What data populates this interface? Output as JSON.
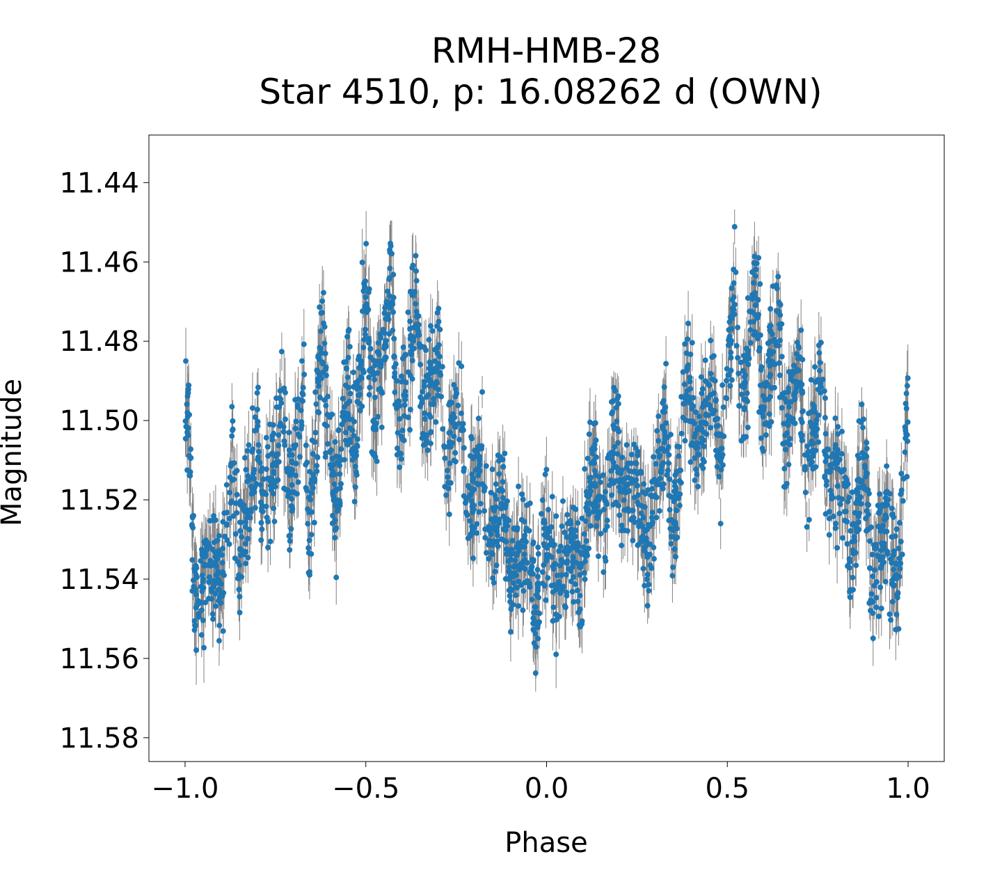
{
  "chart_data": {
    "type": "scatter",
    "title": "RMH-HMB-28",
    "subtitle": "Star 4510, p: 16.08262 d (OWN)",
    "xlabel": "Phase",
    "ylabel": "Magnitude",
    "xlim": [
      -1.1,
      1.1
    ],
    "ylim": [
      11.428,
      11.586
    ],
    "y_inverted": true,
    "grid": false,
    "legend": "none",
    "x_ticks": [
      {
        "value": -1.0,
        "label": "−1.0"
      },
      {
        "value": -0.5,
        "label": "−0.5"
      },
      {
        "value": 0.0,
        "label": "0.0"
      },
      {
        "value": 0.5,
        "label": "0.5"
      },
      {
        "value": 1.0,
        "label": "1.0"
      }
    ],
    "y_ticks": [
      {
        "value": 11.44,
        "label": "11.44"
      },
      {
        "value": 11.46,
        "label": "11.46"
      },
      {
        "value": 11.48,
        "label": "11.48"
      },
      {
        "value": 11.5,
        "label": "11.50"
      },
      {
        "value": 11.52,
        "label": "11.52"
      },
      {
        "value": 11.54,
        "label": "11.54"
      },
      {
        "value": 11.56,
        "label": "11.56"
      },
      {
        "value": 11.58,
        "label": "11.58"
      }
    ],
    "colors": {
      "points": "#1f77b4",
      "errorbars": "#808080"
    },
    "series": [
      {
        "values": [
          {
            "x": -0.99,
            "y": 11.5
          },
          {
            "x": -0.975,
            "y": 11.545
          },
          {
            "x": -0.96,
            "y": 11.54
          },
          {
            "x": -0.92,
            "y": 11.535
          },
          {
            "x": -0.9,
            "y": 11.54
          },
          {
            "x": -0.87,
            "y": 11.51
          },
          {
            "x": -0.85,
            "y": 11.535
          },
          {
            "x": -0.8,
            "y": 11.505
          },
          {
            "x": -0.79,
            "y": 11.525
          },
          {
            "x": -0.76,
            "y": 11.515
          },
          {
            "x": -0.73,
            "y": 11.5
          },
          {
            "x": -0.71,
            "y": 11.52
          },
          {
            "x": -0.67,
            "y": 11.49
          },
          {
            "x": -0.66,
            "y": 11.53
          },
          {
            "x": -0.62,
            "y": 11.48
          },
          {
            "x": -0.6,
            "y": 11.51
          },
          {
            "x": -0.58,
            "y": 11.52
          },
          {
            "x": -0.55,
            "y": 11.49
          },
          {
            "x": -0.53,
            "y": 11.51
          },
          {
            "x": -0.5,
            "y": 11.465
          },
          {
            "x": -0.48,
            "y": 11.5
          },
          {
            "x": -0.43,
            "y": 11.465
          },
          {
            "x": -0.41,
            "y": 11.505
          },
          {
            "x": -0.36,
            "y": 11.47
          },
          {
            "x": -0.34,
            "y": 11.5
          },
          {
            "x": -0.3,
            "y": 11.48
          },
          {
            "x": -0.28,
            "y": 11.515
          },
          {
            "x": -0.24,
            "y": 11.49
          },
          {
            "x": -0.22,
            "y": 11.525
          },
          {
            "x": -0.18,
            "y": 11.51
          },
          {
            "x": -0.16,
            "y": 11.535
          },
          {
            "x": -0.12,
            "y": 11.515
          },
          {
            "x": -0.1,
            "y": 11.54
          },
          {
            "x": -0.05,
            "y": 11.53
          },
          {
            "x": -0.03,
            "y": 11.55
          },
          {
            "x": 0.0,
            "y": 11.525
          },
          {
            "x": 0.03,
            "y": 11.545
          },
          {
            "x": 0.07,
            "y": 11.53
          },
          {
            "x": 0.09,
            "y": 11.54
          },
          {
            "x": 0.13,
            "y": 11.51
          },
          {
            "x": 0.16,
            "y": 11.53
          },
          {
            "x": 0.19,
            "y": 11.5
          },
          {
            "x": 0.21,
            "y": 11.525
          },
          {
            "x": 0.25,
            "y": 11.515
          },
          {
            "x": 0.28,
            "y": 11.535
          },
          {
            "x": 0.33,
            "y": 11.5
          },
          {
            "x": 0.35,
            "y": 11.53
          },
          {
            "x": 0.39,
            "y": 11.485
          },
          {
            "x": 0.41,
            "y": 11.51
          },
          {
            "x": 0.46,
            "y": 11.49
          },
          {
            "x": 0.48,
            "y": 11.515
          },
          {
            "x": 0.52,
            "y": 11.465
          },
          {
            "x": 0.54,
            "y": 11.5
          },
          {
            "x": 0.58,
            "y": 11.465
          },
          {
            "x": 0.6,
            "y": 11.5
          },
          {
            "x": 0.64,
            "y": 11.47
          },
          {
            "x": 0.66,
            "y": 11.505
          },
          {
            "x": 0.7,
            "y": 11.485
          },
          {
            "x": 0.72,
            "y": 11.515
          },
          {
            "x": 0.76,
            "y": 11.49
          },
          {
            "x": 0.78,
            "y": 11.52
          },
          {
            "x": 0.82,
            "y": 11.51
          },
          {
            "x": 0.84,
            "y": 11.535
          },
          {
            "x": 0.88,
            "y": 11.51
          },
          {
            "x": 0.9,
            "y": 11.54
          },
          {
            "x": 0.94,
            "y": 11.525
          },
          {
            "x": 0.97,
            "y": 11.545
          },
          {
            "x": 1.0,
            "y": 11.495
          }
        ]
      }
    ]
  }
}
